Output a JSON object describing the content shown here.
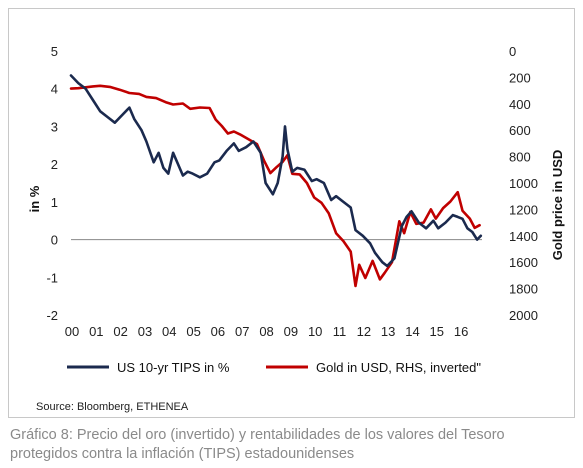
{
  "chart_data": {
    "type": "line",
    "x_tick_labels": [
      "00",
      "01",
      "02",
      "03",
      "04",
      "05",
      "06",
      "07",
      "08",
      "09",
      "10",
      "11",
      "12",
      "13",
      "14",
      "15",
      "16"
    ],
    "x_range": [
      2000,
      2016.9
    ],
    "y_left": {
      "label": "in %",
      "range": [
        -2,
        5
      ],
      "ticks": [
        5,
        4,
        3,
        2,
        1,
        0,
        -1,
        -2
      ]
    },
    "y_right": {
      "label": "Gold price in USD",
      "range": [
        0,
        2000
      ],
      "inverted": true,
      "ticks": [
        0,
        200,
        400,
        600,
        800,
        1000,
        1200,
        1400,
        1600,
        1800,
        2000
      ]
    },
    "grid": false,
    "legend_position": "bottom",
    "series": [
      {
        "name": "US 10-yr TIPS in %",
        "axis": "left",
        "color": "#1b2a4e",
        "points": [
          [
            2000.0,
            4.35
          ],
          [
            2000.3,
            4.15
          ],
          [
            2000.6,
            4.0
          ],
          [
            2000.9,
            3.7
          ],
          [
            2001.2,
            3.4
          ],
          [
            2001.5,
            3.25
          ],
          [
            2001.8,
            3.1
          ],
          [
            2002.1,
            3.3
          ],
          [
            2002.4,
            3.5
          ],
          [
            2002.6,
            3.2
          ],
          [
            2002.9,
            2.9
          ],
          [
            2003.1,
            2.6
          ],
          [
            2003.4,
            2.05
          ],
          [
            2003.6,
            2.3
          ],
          [
            2003.8,
            1.9
          ],
          [
            2004.0,
            1.75
          ],
          [
            2004.2,
            2.3
          ],
          [
            2004.4,
            2.0
          ],
          [
            2004.6,
            1.7
          ],
          [
            2004.8,
            1.8
          ],
          [
            2005.0,
            1.75
          ],
          [
            2005.3,
            1.65
          ],
          [
            2005.6,
            1.75
          ],
          [
            2005.9,
            2.05
          ],
          [
            2006.1,
            2.1
          ],
          [
            2006.4,
            2.35
          ],
          [
            2006.7,
            2.55
          ],
          [
            2006.9,
            2.35
          ],
          [
            2007.2,
            2.45
          ],
          [
            2007.5,
            2.6
          ],
          [
            2007.8,
            2.3
          ],
          [
            2008.0,
            1.5
          ],
          [
            2008.3,
            1.2
          ],
          [
            2008.5,
            1.5
          ],
          [
            2008.7,
            2.2
          ],
          [
            2008.8,
            3.0
          ],
          [
            2008.9,
            2.4
          ],
          [
            2009.1,
            1.8
          ],
          [
            2009.3,
            1.9
          ],
          [
            2009.6,
            1.85
          ],
          [
            2009.9,
            1.55
          ],
          [
            2010.1,
            1.6
          ],
          [
            2010.4,
            1.5
          ],
          [
            2010.7,
            1.05
          ],
          [
            2010.9,
            1.15
          ],
          [
            2011.2,
            1.0
          ],
          [
            2011.5,
            0.85
          ],
          [
            2011.7,
            0.25
          ],
          [
            2012.0,
            0.1
          ],
          [
            2012.3,
            -0.1
          ],
          [
            2012.5,
            -0.35
          ],
          [
            2012.8,
            -0.6
          ],
          [
            2013.0,
            -0.7
          ],
          [
            2013.3,
            -0.5
          ],
          [
            2013.6,
            0.35
          ],
          [
            2013.8,
            0.6
          ],
          [
            2014.0,
            0.75
          ],
          [
            2014.3,
            0.45
          ],
          [
            2014.6,
            0.3
          ],
          [
            2014.9,
            0.5
          ],
          [
            2015.1,
            0.3
          ],
          [
            2015.4,
            0.45
          ],
          [
            2015.7,
            0.65
          ],
          [
            2015.9,
            0.6
          ],
          [
            2016.1,
            0.55
          ],
          [
            2016.3,
            0.3
          ],
          [
            2016.5,
            0.2
          ],
          [
            2016.7,
            0.0
          ],
          [
            2016.85,
            0.1
          ]
        ]
      },
      {
        "name": "Gold in USD, RHS, inverted\"",
        "axis": "right",
        "color": "#c00000",
        "points": [
          [
            2000.0,
            285
          ],
          [
            2000.3,
            282
          ],
          [
            2000.6,
            275
          ],
          [
            2000.9,
            268
          ],
          [
            2001.2,
            264
          ],
          [
            2001.6,
            272
          ],
          [
            2002.0,
            293
          ],
          [
            2002.4,
            318
          ],
          [
            2002.8,
            325
          ],
          [
            2003.1,
            348
          ],
          [
            2003.5,
            357
          ],
          [
            2003.9,
            388
          ],
          [
            2004.2,
            405
          ],
          [
            2004.6,
            398
          ],
          [
            2004.9,
            438
          ],
          [
            2005.3,
            428
          ],
          [
            2005.7,
            432
          ],
          [
            2005.95,
            520
          ],
          [
            2006.2,
            568
          ],
          [
            2006.45,
            625
          ],
          [
            2006.7,
            610
          ],
          [
            2006.95,
            632
          ],
          [
            2007.3,
            668
          ],
          [
            2007.65,
            705
          ],
          [
            2007.95,
            835
          ],
          [
            2008.2,
            925
          ],
          [
            2008.45,
            880
          ],
          [
            2008.7,
            840
          ],
          [
            2008.9,
            790
          ],
          [
            2009.1,
            930
          ],
          [
            2009.4,
            935
          ],
          [
            2009.7,
            1000
          ],
          [
            2010.0,
            1110
          ],
          [
            2010.3,
            1150
          ],
          [
            2010.6,
            1230
          ],
          [
            2010.9,
            1380
          ],
          [
            2011.2,
            1440
          ],
          [
            2011.5,
            1520
          ],
          [
            2011.7,
            1780
          ],
          [
            2011.85,
            1620
          ],
          [
            2012.1,
            1720
          ],
          [
            2012.4,
            1590
          ],
          [
            2012.7,
            1730
          ],
          [
            2012.9,
            1680
          ],
          [
            2013.2,
            1600
          ],
          [
            2013.5,
            1290
          ],
          [
            2013.7,
            1380
          ],
          [
            2013.95,
            1220
          ],
          [
            2014.2,
            1310
          ],
          [
            2014.5,
            1300
          ],
          [
            2014.8,
            1200
          ],
          [
            2015.0,
            1270
          ],
          [
            2015.3,
            1190
          ],
          [
            2015.6,
            1140
          ],
          [
            2015.9,
            1070
          ],
          [
            2016.1,
            1210
          ],
          [
            2016.4,
            1270
          ],
          [
            2016.6,
            1340
          ],
          [
            2016.8,
            1320
          ]
        ]
      }
    ]
  },
  "source_text": "Source: Bloomberg, ETHENEA",
  "caption_text": "Gráfico 8: Precio del oro (invertido) y rentabilidades de los valores del Tesoro protegidos contra la inflación (TIPS) estadounidenses"
}
